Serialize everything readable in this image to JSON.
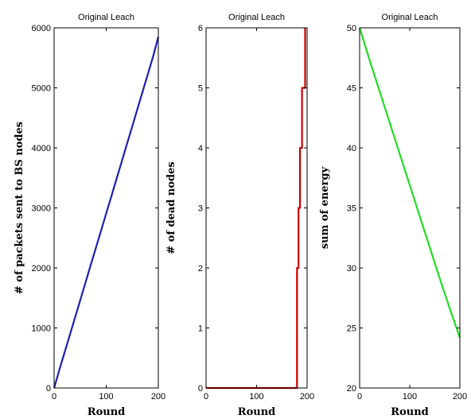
{
  "chart_data": [
    {
      "type": "line",
      "title": "Original Leach",
      "xlabel": "Round",
      "ylabel": "# of packets sent to BS nodes",
      "xlim": [
        0,
        200
      ],
      "ylim": [
        0,
        6000
      ],
      "xticks": [
        0,
        100,
        200
      ],
      "yticks": [
        0,
        1000,
        2000,
        3000,
        4000,
        5000,
        6000
      ],
      "color": "#1f1fb4",
      "x": [
        0,
        5,
        10,
        20,
        30,
        40,
        50,
        60,
        70,
        80,
        90,
        100,
        110,
        120,
        130,
        140,
        150,
        160,
        170,
        180,
        190,
        200
      ],
      "y": [
        0,
        150,
        300,
        590,
        880,
        1170,
        1460,
        1750,
        2040,
        2330,
        2620,
        2910,
        3200,
        3490,
        3780,
        4070,
        4360,
        4650,
        4940,
        5230,
        5520,
        5850
      ]
    },
    {
      "type": "line",
      "title": "Original Leach",
      "xlabel": "Round",
      "ylabel": "# of dead nodes",
      "xlim": [
        0,
        200
      ],
      "ylim": [
        0,
        6
      ],
      "xticks": [
        0,
        100,
        200
      ],
      "yticks": [
        0,
        1,
        2,
        3,
        4,
        5,
        6
      ],
      "color": "#cc0000",
      "x": [
        0,
        180,
        180,
        183,
        183,
        186,
        186,
        190,
        190,
        193,
        193,
        196,
        196
      ],
      "y": [
        0,
        0,
        2,
        2,
        3,
        3,
        4,
        4,
        5,
        5,
        5,
        5,
        6
      ]
    },
    {
      "type": "line",
      "title": "Original Leach",
      "xlabel": "Round",
      "ylabel": "sum of energy",
      "xlim": [
        0,
        200
      ],
      "ylim": [
        20,
        50
      ],
      "xticks": [
        0,
        100,
        200
      ],
      "yticks": [
        20,
        25,
        30,
        35,
        40,
        45,
        50
      ],
      "color": "#22dd22",
      "x": [
        0,
        20,
        40,
        60,
        80,
        100,
        120,
        140,
        160,
        180,
        200
      ],
      "y": [
        50,
        47.3,
        44.7,
        42.1,
        39.5,
        36.9,
        34.3,
        31.7,
        29.1,
        26.6,
        24.2
      ]
    }
  ]
}
